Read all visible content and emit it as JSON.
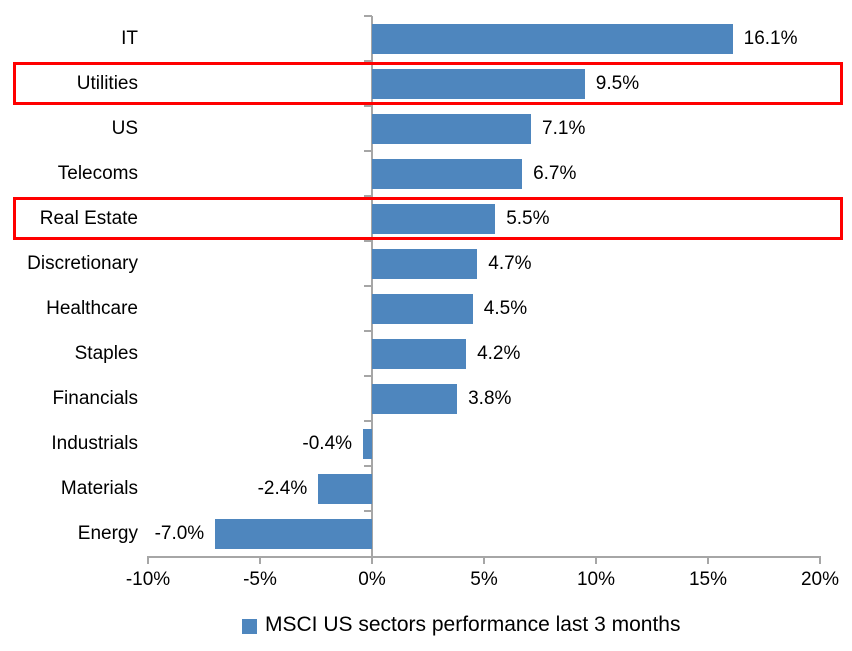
{
  "chart_data": {
    "type": "bar",
    "orientation": "horizontal",
    "title": "",
    "xlabel": "",
    "ylabel": "",
    "legend": "MSCI US sectors performance last 3 months",
    "legend_position": "bottom",
    "grid": false,
    "categories": [
      "IT",
      "Utilities",
      "US",
      "Telecoms",
      "Real Estate",
      "Discretionary",
      "Healthcare",
      "Staples",
      "Financials",
      "Industrials",
      "Materials",
      "Energy"
    ],
    "values": [
      16.1,
      9.5,
      7.1,
      6.7,
      5.5,
      4.7,
      4.5,
      4.2,
      3.8,
      -0.4,
      -2.4,
      -7.0
    ],
    "value_labels": [
      "16.1%",
      "9.5%",
      "7.1%",
      "6.7%",
      "5.5%",
      "4.7%",
      "4.5%",
      "4.2%",
      "3.8%",
      "-0.4%",
      "-2.4%",
      "-7.0%"
    ],
    "highlighted_categories": [
      "Utilities",
      "Real Estate"
    ],
    "x_ticks": [
      "-10%",
      "-5%",
      "0%",
      "5%",
      "10%",
      "15%",
      "20%"
    ],
    "x_tick_values": [
      -10,
      -5,
      0,
      5,
      10,
      15,
      20
    ],
    "x_range": [
      -10,
      20
    ],
    "colors": {
      "bar": "#4E86BE",
      "axis": "#A6A6A6",
      "highlight_border": "#FF0000",
      "text": "#000000"
    }
  }
}
